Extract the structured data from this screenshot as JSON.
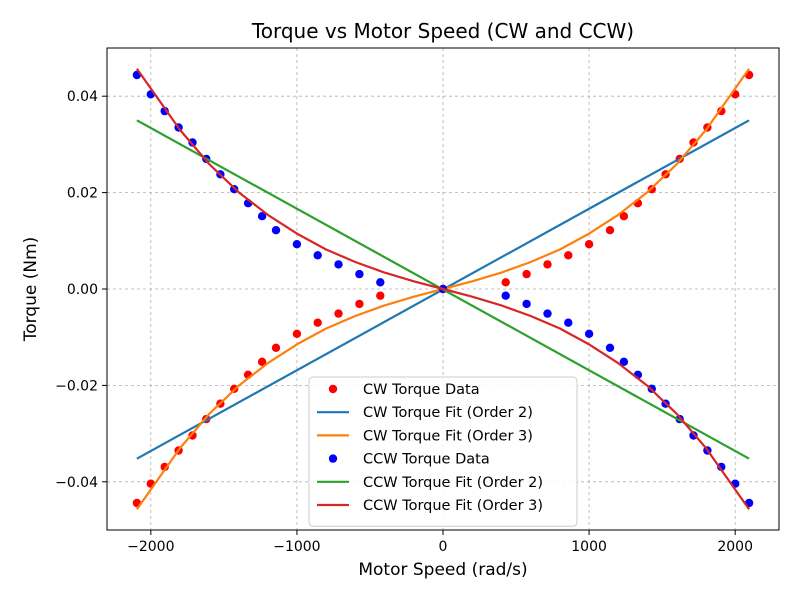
{
  "chart_data": {
    "type": "scatter",
    "title": "Torque vs Motor Speed (CW and CCW)",
    "xlabel": "Motor Speed (rad/s)",
    "ylabel": "Torque (Nm)",
    "xlim": [
      -2300,
      2300
    ],
    "ylim": [
      -0.05,
      0.05
    ],
    "xticks": [
      -2000,
      -1000,
      0,
      1000,
      2000
    ],
    "xtick_labels": [
      "−2000",
      "−1000",
      "0",
      "1000",
      "2000"
    ],
    "yticks": [
      -0.04,
      -0.02,
      0.0,
      0.02,
      0.04
    ],
    "ytick_labels": [
      "−0.04",
      "−0.02",
      "0.00",
      "0.02",
      "0.04"
    ],
    "grid": true,
    "legend_position": "lower-center",
    "series": [
      {
        "name": "CW Torque Data",
        "kind": "points",
        "color": "#ff0000",
        "x": [
          -2095,
          -2000,
          -1905,
          -1810,
          -1715,
          -1620,
          -1524,
          -1429,
          -1334,
          -1238,
          -1143,
          -1000,
          -858,
          -715,
          -572,
          -429,
          0,
          429,
          572,
          715,
          858,
          1000,
          1143,
          1238,
          1334,
          1429,
          1524,
          1620,
          1715,
          1810,
          1905,
          2000,
          2095
        ],
        "y": [
          -0.0444,
          -0.0404,
          -0.0369,
          -0.0335,
          -0.0304,
          -0.027,
          -0.0238,
          -0.0207,
          -0.0178,
          -0.0151,
          -0.0122,
          -0.0093,
          -0.007,
          -0.0051,
          -0.0031,
          -0.0014,
          0.0,
          0.0014,
          0.0031,
          0.0051,
          0.007,
          0.0093,
          0.0122,
          0.0151,
          0.0178,
          0.0207,
          0.0238,
          0.027,
          0.0304,
          0.0335,
          0.0369,
          0.0404,
          0.0444
        ]
      },
      {
        "name": "CW Torque Fit (Order 2)",
        "kind": "line",
        "color": "#1f77b4",
        "x": [
          -2095,
          2095
        ],
        "y": [
          -0.0352,
          0.035
        ]
      },
      {
        "name": "CW Torque Fit (Order 3)",
        "kind": "line",
        "color": "#ff7f0e",
        "x": [
          -2095,
          -1800,
          -1600,
          -1400,
          -1200,
          -1000,
          -800,
          -600,
          -400,
          -200,
          0,
          200,
          400,
          600,
          800,
          1000,
          1200,
          1400,
          1600,
          1800,
          2095
        ],
        "y": [
          -0.0457,
          -0.033,
          -0.0259,
          -0.0201,
          -0.0154,
          -0.0115,
          -0.0082,
          -0.0056,
          -0.0034,
          -0.0016,
          0.0,
          0.0016,
          0.0034,
          0.0056,
          0.0082,
          0.0115,
          0.0154,
          0.0201,
          0.0259,
          0.033,
          0.0457
        ]
      },
      {
        "name": "CCW Torque Data",
        "kind": "points",
        "color": "#0000ff",
        "x": [
          -2095,
          -2000,
          -1905,
          -1810,
          -1715,
          -1620,
          -1524,
          -1429,
          -1334,
          -1238,
          -1143,
          -1000,
          -858,
          -715,
          -572,
          -429,
          0,
          429,
          572,
          715,
          858,
          1000,
          1143,
          1238,
          1334,
          1429,
          1524,
          1620,
          1715,
          1810,
          1905,
          2000,
          2095
        ],
        "y": [
          0.0444,
          0.0404,
          0.0369,
          0.0335,
          0.0304,
          0.027,
          0.0238,
          0.0207,
          0.0178,
          0.0151,
          0.0122,
          0.0093,
          0.007,
          0.0051,
          0.0031,
          0.0014,
          0.0,
          -0.0014,
          -0.0031,
          -0.0051,
          -0.007,
          -0.0093,
          -0.0122,
          -0.0151,
          -0.0178,
          -0.0207,
          -0.0238,
          -0.027,
          -0.0304,
          -0.0335,
          -0.0369,
          -0.0404,
          -0.0444
        ]
      },
      {
        "name": "CCW Torque Fit (Order 2)",
        "kind": "line",
        "color": "#2ca02c",
        "x": [
          -2095,
          2095
        ],
        "y": [
          0.035,
          -0.0352
        ]
      },
      {
        "name": "CCW Torque Fit (Order 3)",
        "kind": "line",
        "color": "#d62728",
        "x": [
          -2095,
          -1800,
          -1600,
          -1400,
          -1200,
          -1000,
          -800,
          -600,
          -400,
          -200,
          0,
          200,
          400,
          600,
          800,
          1000,
          1200,
          1400,
          1600,
          1800,
          2095
        ],
        "y": [
          0.0457,
          0.033,
          0.0259,
          0.0201,
          0.0154,
          0.0115,
          0.0082,
          0.0056,
          0.0034,
          0.0016,
          0.0,
          -0.0016,
          -0.0034,
          -0.0056,
          -0.0082,
          -0.0115,
          -0.0154,
          -0.0201,
          -0.0259,
          -0.033,
          -0.0457
        ]
      }
    ]
  }
}
